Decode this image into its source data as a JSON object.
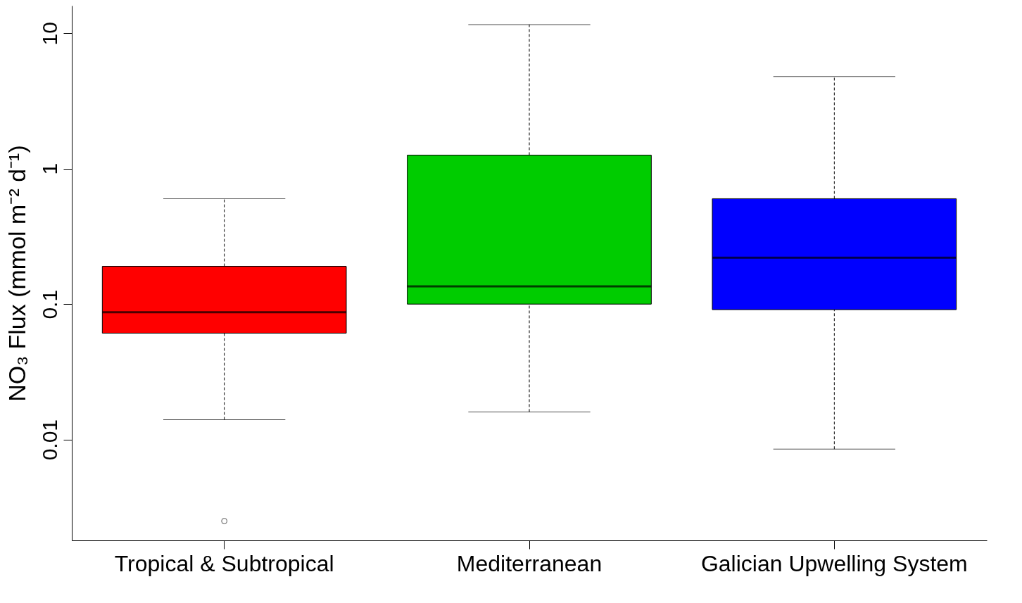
{
  "chart_data": {
    "type": "box",
    "ylabel": "NO₃ Flux (mmol m⁻² d⁻¹)",
    "categories": [
      "Tropical & Subtropical",
      "Mediterranean",
      "Galician Upwelling System"
    ],
    "colors": [
      "#ff0000",
      "#00cc00",
      "#0000ff"
    ],
    "boxes": [
      {
        "low": 0.014,
        "q1": 0.061,
        "median": 0.087,
        "q3": 0.19,
        "high": 0.6,
        "outliers": [
          0.0025
        ]
      },
      {
        "low": 0.016,
        "q1": 0.1,
        "median": 0.135,
        "q3": 1.26,
        "high": 11.6
      },
      {
        "low": 0.0085,
        "q1": 0.091,
        "median": 0.22,
        "q3": 0.6,
        "high": 4.8
      }
    ],
    "log": true,
    "ylim": [
      0.0018,
      16
    ],
    "yticks": [
      0.01,
      0.1,
      1,
      10
    ],
    "grid": false
  }
}
